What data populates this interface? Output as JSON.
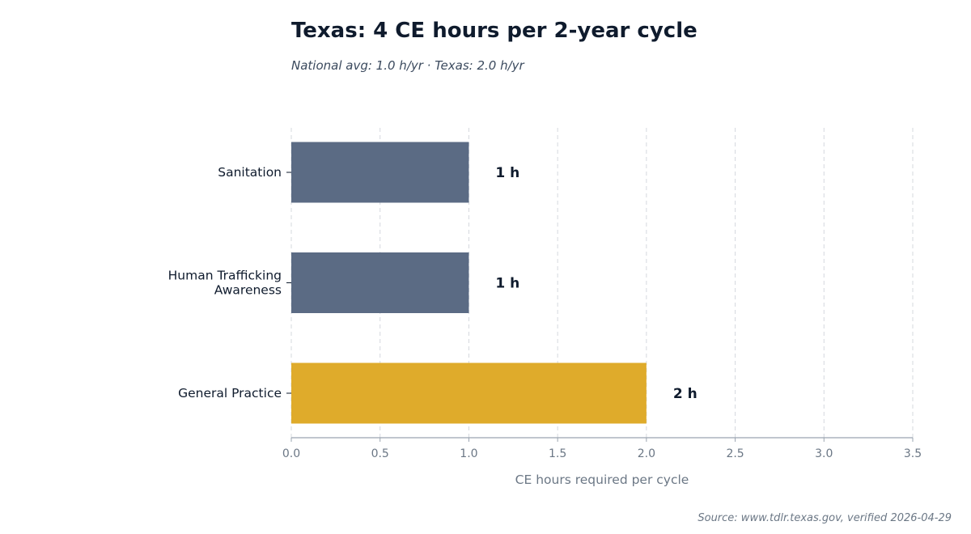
{
  "chart_data": {
    "type": "bar",
    "orientation": "horizontal",
    "title": "Texas: 4 CE hours per 2-year cycle",
    "subtitle": "National avg: 1.0 h/yr · Texas: 2.0 h/yr",
    "categories": [
      {
        "label_lines": [
          "Sanitation"
        ],
        "value": 1,
        "value_label": "1 h",
        "color": "#5b6b84"
      },
      {
        "label_lines": [
          "Human Trafficking",
          "Awareness"
        ],
        "value": 1,
        "value_label": "1 h",
        "color": "#5b6b84"
      },
      {
        "label_lines": [
          "General Practice"
        ],
        "value": 2,
        "value_label": "2 h",
        "color": "#dfab2b"
      }
    ],
    "xlabel": "CE hours required per cycle",
    "ylabel": "",
    "xlim": [
      0,
      3.5
    ],
    "x_ticks": [
      "0.0",
      "0.5",
      "1.0",
      "1.5",
      "2.0",
      "2.5",
      "3.0",
      "3.5"
    ],
    "grid": true,
    "source": "Source: www.tdlr.texas.gov, verified 2026-04-29"
  }
}
